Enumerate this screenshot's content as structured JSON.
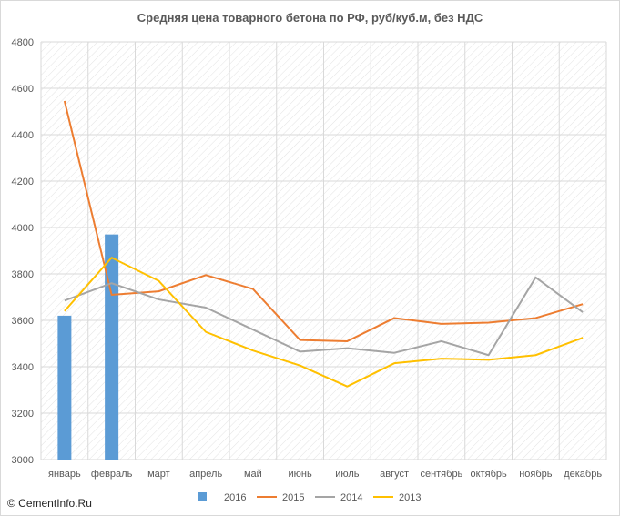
{
  "chart_data": {
    "type": "line",
    "title": "Средняя цена товарного бетона по РФ, руб/куб.м, без НДС",
    "xlabel": "",
    "ylabel": "",
    "ylim": [
      3000,
      4800
    ],
    "yticks": [
      3000,
      3200,
      3400,
      3600,
      3800,
      4000,
      4200,
      4400,
      4600,
      4800
    ],
    "categories": [
      "январь",
      "февраль",
      "март",
      "апрель",
      "май",
      "июнь",
      "июль",
      "август",
      "сентябрь",
      "октябрь",
      "ноябрь",
      "декабрь"
    ],
    "grid": true,
    "legend_position": "bottom",
    "series": [
      {
        "name": "2016",
        "kind": "bar",
        "color": "#5b9bd5",
        "values": [
          3620,
          3970,
          null,
          null,
          null,
          null,
          null,
          null,
          null,
          null,
          null,
          null
        ]
      },
      {
        "name": "2015",
        "kind": "line",
        "color": "#ed7d31",
        "values": [
          4545,
          3710,
          3725,
          3795,
          3735,
          3515,
          3510,
          3610,
          3585,
          3590,
          3610,
          3670
        ]
      },
      {
        "name": "2014",
        "kind": "line",
        "color": "#a5a5a5",
        "values": [
          3685,
          3760,
          3690,
          3655,
          3560,
          3465,
          3480,
          3460,
          3510,
          3450,
          3785,
          3635
        ]
      },
      {
        "name": "2013",
        "kind": "line",
        "color": "#ffc000",
        "values": [
          3640,
          3870,
          3770,
          3550,
          3470,
          3405,
          3315,
          3415,
          3435,
          3430,
          3450,
          3525
        ]
      }
    ]
  },
  "copyright": "© CementInfo.Ru"
}
